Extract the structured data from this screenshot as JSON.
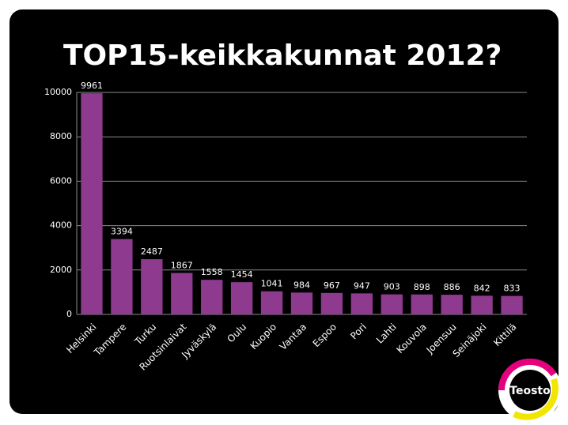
{
  "chart_data": {
    "type": "bar",
    "title": "TOP15-keikkakunnat 2012?",
    "categories": [
      "Helsinki",
      "Tampere",
      "Turku",
      "Ruotsinlaivat",
      "Jyväskylä",
      "Oulu",
      "Kuopio",
      "Vantaa",
      "Espoo",
      "Pori",
      "Lahti",
      "Kouvola",
      "Joensuu",
      "Seinäjoki",
      "Kittilä"
    ],
    "values": [
      9961,
      3394,
      2487,
      1867,
      1558,
      1454,
      1041,
      984,
      967,
      947,
      903,
      898,
      886,
      842,
      833
    ],
    "color": "#8e3a8f",
    "ylim": [
      0,
      10000
    ],
    "yticks": [
      0,
      2000,
      4000,
      6000,
      8000,
      10000
    ],
    "grid": true
  },
  "logo": "Teosto"
}
